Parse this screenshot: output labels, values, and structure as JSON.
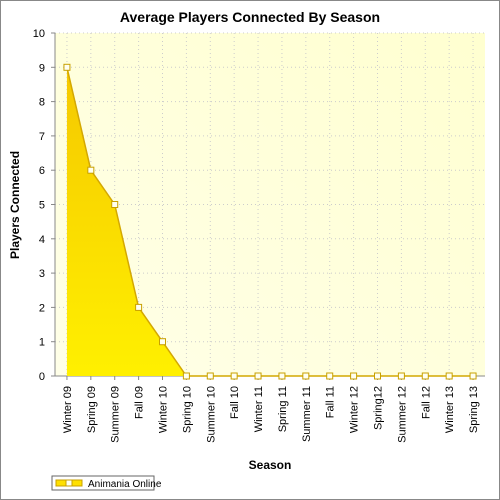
{
  "chart_data": {
    "type": "area",
    "title": "Average Players Connected By Season",
    "x_label": "Season",
    "y_label": "Players Connected",
    "categories": [
      "Winter 09",
      "Spring 09",
      "Summer 09",
      "Fall 09",
      "Winter 10",
      "Spring 10",
      "Summer 10",
      "Fall 10",
      "Winter 11",
      "Spring 11",
      "Summer 11",
      "Fall 11",
      "Winter 12",
      "Spring12",
      "Summer 12",
      "Fall 12",
      "Winter 13",
      "Spring 13"
    ],
    "series": [
      {
        "name": "Animania Online",
        "color": "#ffe000",
        "values": [
          9,
          6,
          5,
          2,
          1,
          0,
          0,
          0,
          0,
          0,
          0,
          0,
          0,
          0,
          0,
          0,
          0,
          0
        ]
      }
    ],
    "ylim": [
      0,
      10
    ],
    "yticks": [
      0,
      1,
      2,
      3,
      4,
      5,
      6,
      7,
      8,
      9,
      10
    ],
    "grid": true,
    "legend": "bottom-left"
  }
}
